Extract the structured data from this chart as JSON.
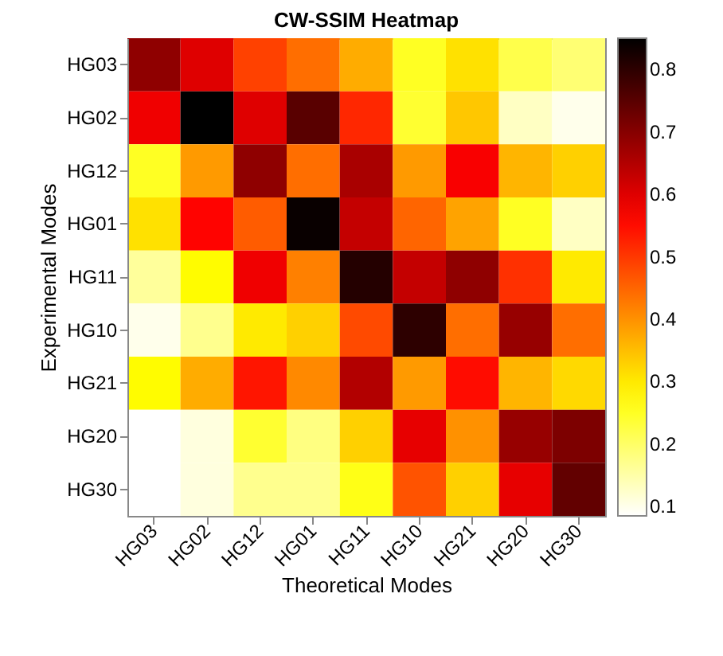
{
  "chart_data": {
    "type": "heatmap",
    "title": "CW-SSIM Heatmap",
    "xlabel": "Theoretical Modes",
    "ylabel": "Experimental Modes",
    "categories": [
      "HG03",
      "HG02",
      "HG12",
      "HG01",
      "HG11",
      "HG10",
      "HG21",
      "HG20",
      "HG30"
    ],
    "y_categories": [
      "HG03",
      "HG02",
      "HG12",
      "HG01",
      "HG11",
      "HG10",
      "HG21",
      "HG20",
      "HG30"
    ],
    "cells": [
      [
        0.69,
        0.6,
        0.49,
        0.44,
        0.37,
        0.25,
        0.31,
        0.22,
        0.19
      ],
      [
        0.58,
        0.85,
        0.6,
        0.75,
        0.52,
        0.24,
        0.34,
        0.13,
        0.1
      ],
      [
        0.25,
        0.39,
        0.69,
        0.44,
        0.66,
        0.39,
        0.57,
        0.36,
        0.33
      ],
      [
        0.31,
        0.56,
        0.46,
        0.84,
        0.63,
        0.45,
        0.38,
        0.25,
        0.13
      ],
      [
        0.16,
        0.28,
        0.58,
        0.42,
        0.81,
        0.63,
        0.69,
        0.51,
        0.3
      ],
      [
        0.1,
        0.17,
        0.3,
        0.33,
        0.48,
        0.8,
        0.44,
        0.68,
        0.44
      ],
      [
        0.28,
        0.37,
        0.54,
        0.41,
        0.65,
        0.39,
        0.55,
        0.36,
        0.32
      ],
      [
        0.085,
        0.11,
        0.24,
        0.18,
        0.33,
        0.59,
        0.4,
        0.68,
        0.71
      ],
      [
        0.085,
        0.11,
        0.17,
        0.17,
        0.26,
        0.47,
        0.33,
        0.59,
        0.74
      ]
    ],
    "clim": [
      0.085,
      0.85
    ],
    "cticks": [
      0.1,
      0.2,
      0.3,
      0.4,
      0.5,
      0.6,
      0.7,
      0.8
    ]
  }
}
